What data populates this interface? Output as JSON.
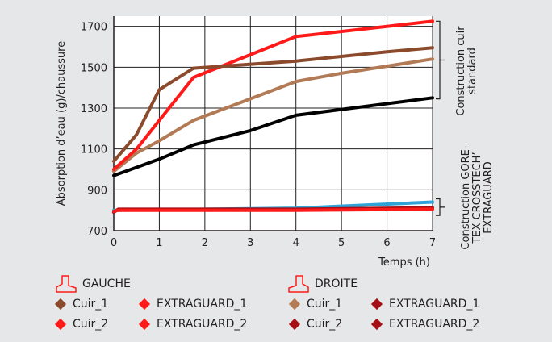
{
  "colors": {
    "background": "#e6e7e8",
    "cuir_1_gauche": "#8b4a2b",
    "cuir_1_droite": "#b27a55",
    "cuir_2_gauche": "#ff1a1a",
    "extraguard_gauche": "#ff1a1a",
    "extraguard_droite": "#a50f15",
    "blue_series": "#2ea3d6",
    "grid": "#231f20"
  },
  "chart_data": {
    "type": "line",
    "xlabel": "Temps (h)",
    "ylabel": "Absorption d’eau (g)/chaussure",
    "xlim": [
      0,
      7
    ],
    "ylim": [
      700,
      1750
    ],
    "x_ticks": [
      "0",
      "1",
      "2",
      "3",
      "4",
      "5",
      "6",
      "7"
    ],
    "y_ticks": [
      "700",
      "900",
      "1100",
      "1300",
      "1500",
      "1700"
    ],
    "grid": true,
    "series": [
      {
        "key": "cuir_1_droite",
        "points": [
          [
            0,
            990
          ],
          [
            0.5,
            1080
          ],
          [
            1,
            1140
          ],
          [
            1.75,
            1240
          ],
          [
            4,
            1430
          ],
          [
            5,
            1470
          ],
          [
            7,
            1540
          ]
        ]
      },
      {
        "key": "cuir_2_droite",
        "points": [
          [
            0,
            970
          ],
          [
            0.5,
            1010
          ],
          [
            1,
            1050
          ],
          [
            1.75,
            1120
          ],
          [
            3,
            1190
          ],
          [
            4,
            1265
          ],
          [
            7,
            1350
          ]
        ]
      },
      {
        "key": "cuir_2_gauche",
        "points": [
          [
            0,
            1000
          ],
          [
            0.5,
            1100
          ],
          [
            1,
            1240
          ],
          [
            1.75,
            1450
          ],
          [
            4,
            1650
          ],
          [
            6,
            1700
          ],
          [
            7,
            1725
          ]
        ]
      },
      {
        "key": "cuir_1_gauche",
        "points": [
          [
            0,
            1040
          ],
          [
            0.5,
            1170
          ],
          [
            1,
            1390
          ],
          [
            1.75,
            1495
          ],
          [
            4,
            1530
          ],
          [
            6,
            1575
          ],
          [
            7,
            1595
          ]
        ]
      },
      {
        "key": "blue_series",
        "points": [
          [
            0,
            800
          ],
          [
            4,
            810
          ],
          [
            7,
            840
          ]
        ]
      },
      {
        "key": "extraguard_droite",
        "points": [
          [
            0,
            790
          ],
          [
            0.1,
            805
          ],
          [
            4,
            805
          ],
          [
            7,
            812
          ]
        ]
      },
      {
        "key": "extraguard_gauche",
        "points": [
          [
            0,
            795
          ],
          [
            0.1,
            800
          ],
          [
            4,
            800
          ],
          [
            7,
            805
          ]
        ]
      }
    ],
    "brackets": [
      {
        "label_lines": [
          "Construction cuir",
          "standard"
        ],
        "y_top": 1725,
        "y_bottom": 1345
      },
      {
        "label_lines": [
          "Construction GORE-",
          "TEX CROSSTECH’",
          "EXTRAGUARD"
        ],
        "y_top": 840,
        "y_bottom": 790
      }
    ]
  },
  "legend": {
    "gauche": {
      "title": "GAUCHE",
      "items": [
        {
          "label": "Cuir_1",
          "color": "#8b4a2b"
        },
        {
          "label": "EXTRAGUARD_1",
          "color": "#ff1a1a"
        },
        {
          "label": "Cuir_2",
          "color": "#ff1a1a"
        },
        {
          "label": "EXTRAGUARD_2",
          "color": "#ff1a1a"
        }
      ]
    },
    "droite": {
      "title": "DROITE",
      "items": [
        {
          "label": "Cuir_1",
          "color": "#b27a55"
        },
        {
          "label": "EXTRAGUARD_1",
          "color": "#a50f15"
        },
        {
          "label": "Cuir_2",
          "color": "#a50f15"
        },
        {
          "label": "EXTRAGUARD_2",
          "color": "#a50f15"
        }
      ]
    }
  }
}
